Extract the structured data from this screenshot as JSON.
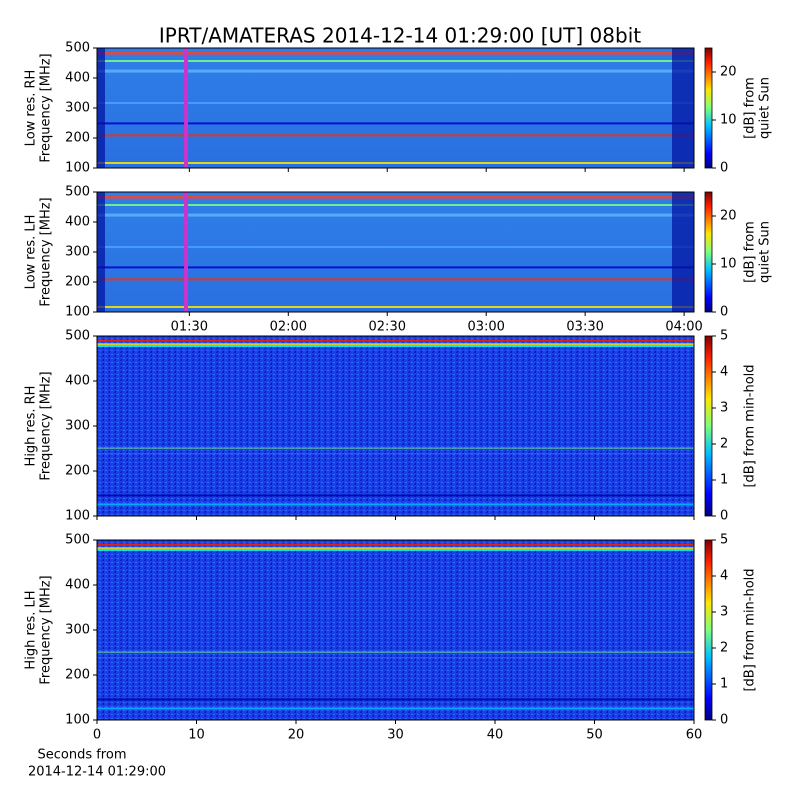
{
  "chart_data": [
    {
      "type": "heatmap",
      "title": "IPRT/AMATERAS 2014-12-14 01:29:00 [UT]   08bit",
      "ylabel": [
        "Low res. RH",
        "Frequency [MHz]"
      ],
      "ylim": [
        100,
        500
      ],
      "yticks": [
        100,
        200,
        300,
        400,
        500
      ],
      "xlim": [
        62,
        243
      ],
      "xticks": [
        90,
        120,
        150,
        180,
        210,
        240
      ],
      "xtick_labels": false,
      "marker": {
        "x": 89,
        "color": "#cc33cc"
      },
      "colorbar": {
        "label": [
          "[dB] from",
          "quiet Sun"
        ],
        "lim": [
          0,
          25
        ],
        "ticks": [
          0,
          10,
          20
        ],
        "colormap": "jet"
      }
    },
    {
      "type": "heatmap",
      "ylabel": [
        "Low res. LH",
        "Frequency [MHz]"
      ],
      "ylim": [
        100,
        500
      ],
      "yticks": [
        100,
        200,
        300,
        400,
        500
      ],
      "xlim": [
        62,
        243
      ],
      "xticks": [
        {
          "value": 90,
          "label": "01:30"
        },
        {
          "value": 120,
          "label": "02:00"
        },
        {
          "value": 150,
          "label": "02:30"
        },
        {
          "value": 180,
          "label": "03:00"
        },
        {
          "value": 210,
          "label": "03:30"
        },
        {
          "value": 240,
          "label": "04:00"
        }
      ],
      "xtick_labels": true,
      "marker": {
        "x": 89,
        "color": "#cc33cc"
      },
      "colorbar": {
        "label": [
          "[dB] from",
          "quiet Sun"
        ],
        "lim": [
          0,
          25
        ],
        "ticks": [
          0,
          10,
          20
        ],
        "colormap": "jet"
      }
    },
    {
      "type": "heatmap",
      "ylabel": [
        "High res. RH",
        "Frequency [MHz]"
      ],
      "ylim": [
        100,
        500
      ],
      "yticks": [
        100,
        200,
        300,
        400,
        500
      ],
      "xlim": [
        0,
        60
      ],
      "xticks": [
        0,
        10,
        20,
        30,
        40,
        50,
        60
      ],
      "xtick_labels": false,
      "colorbar": {
        "label": [
          "[dB] from min-hold"
        ],
        "lim": [
          0,
          5
        ],
        "ticks": [
          0,
          1,
          2,
          3,
          4,
          5
        ],
        "colormap": "jet"
      }
    },
    {
      "type": "heatmap",
      "ylabel": [
        "High res. LH",
        "Frequency [MHz]"
      ],
      "ylim": [
        100,
        500
      ],
      "yticks": [
        100,
        200,
        300,
        400,
        500
      ],
      "xlim": [
        0,
        60
      ],
      "xticks": [
        0,
        10,
        20,
        30,
        40,
        50,
        60
      ],
      "xtick_labels": true,
      "xlabel": [
        "Seconds from",
        "2014-12-14 01:29:00"
      ],
      "colorbar": {
        "label": [
          "[dB] from min-hold"
        ],
        "lim": [
          0,
          5
        ],
        "ticks": [
          0,
          1,
          2,
          3,
          4,
          5
        ],
        "colormap": "jet"
      }
    }
  ]
}
